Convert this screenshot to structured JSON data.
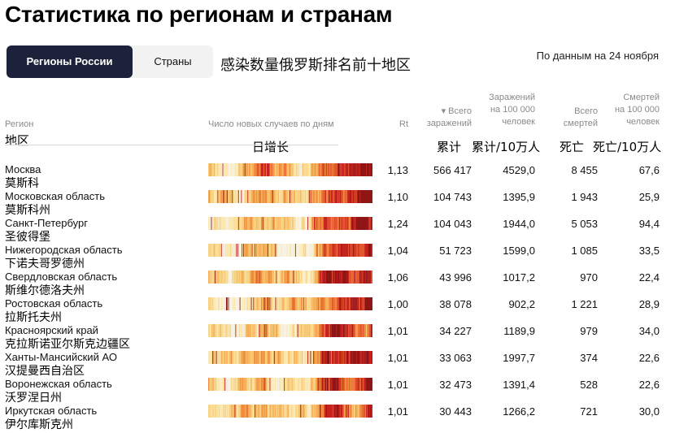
{
  "page": {
    "title": "Статистика по регионам и странам",
    "cn_subtitle": "感染数量俄罗斯排名前十地区",
    "date_note": "По данным на 24 ноября"
  },
  "tabs": [
    {
      "label": "Регионы России",
      "active": true
    },
    {
      "label": "Страны",
      "active": false
    }
  ],
  "headers": {
    "region": "Регион",
    "chart": "Число новых случаев по дням",
    "rt": "Rt",
    "total_line1": "▾ Всего",
    "total_line2": "заражений",
    "per100_line1": "Заражений",
    "per100_line2": "на 100 000",
    "per100_line3": "человек",
    "deaths_line1": "Всего",
    "deaths_line2": "смертей",
    "dper100_line1": "Смертей",
    "dper100_line2": "на 100 000",
    "dper100_line3": "человек"
  },
  "cn_headers": {
    "region": "地区",
    "chart": "日增长",
    "total": "累计",
    "per100": "累计/10万人",
    "deaths": "死亡",
    "dper100": "死亡/10万人"
  },
  "heat_colors": [
    "#f7f2e6",
    "#fbe7b0",
    "#f9d283",
    "#f6b15a",
    "#ef8a3c",
    "#e3562c",
    "#c5221f",
    "#8f1414"
  ],
  "rows": [
    {
      "name": "Москва",
      "cn": "莫斯科",
      "rt": "1,13",
      "total": "566 417",
      "per100": "4529,0",
      "deaths": "8 455",
      "dper100": "67,6"
    },
    {
      "name": "Московская область",
      "cn": "莫斯科州",
      "rt": "1,10",
      "total": "104 743",
      "per100": "1395,9",
      "deaths": "1 943",
      "dper100": "25,9"
    },
    {
      "name": "Санкт-Петербург",
      "cn": " 圣彼得堡",
      "rt": "1,24",
      "total": "104 043",
      "per100": "1944,0",
      "deaths": "5 053",
      "dper100": "94,4"
    },
    {
      "name": "Нижегородская область",
      "cn": "下诺夫哥罗德州",
      "rt": "1,04",
      "total": "51 723",
      "per100": "1599,0",
      "deaths": "1 085",
      "dper100": "33,5"
    },
    {
      "name": "Свердловская область",
      "cn": "斯维尔德洛夫州",
      "rt": "1,06",
      "total": "43 996",
      "per100": "1017,2",
      "deaths": "970",
      "dper100": "22,4"
    },
    {
      "name": "Ростовская область",
      "cn": "拉斯托夫州",
      "rt": "1,00",
      "total": "38 078",
      "per100": "902,2",
      "deaths": "1 221",
      "dper100": "28,9"
    },
    {
      "name": "Красноярский край",
      "cn": "克拉斯诺亚尔斯克边疆区",
      "rt": "1,01",
      "total": "34 227",
      "per100": "1189,9",
      "deaths": "979",
      "dper100": "34,0"
    },
    {
      "name": "Ханты-Мансийский АО",
      "cn": "汉提曼西自治区",
      "rt": "1,01",
      "total": "33 063",
      "per100": "1997,7",
      "deaths": "374",
      "dper100": "22,6"
    },
    {
      "name": "Воронежская область",
      "cn": "沃罗涅日州",
      "rt": "1,01",
      "total": "32 473",
      "per100": "1391,4",
      "deaths": "528",
      "dper100": "22,6"
    },
    {
      "name": "Иркутская область",
      "cn": "伊尔库斯克州",
      "rt": "1,01",
      "total": "30 443",
      "per100": "1266,2",
      "deaths": "721",
      "dper100": "30,0"
    }
  ]
}
